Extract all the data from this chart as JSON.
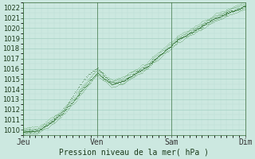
{
  "title": "",
  "xlabel": "Pression niveau de la mer( hPa )",
  "background_color": "#cce8e0",
  "grid_color_major": "#99ccbb",
  "grid_color_minor": "#bbddd4",
  "ylim": [
    1009.5,
    1022.5
  ],
  "xlim": [
    0,
    288
  ],
  "yticks": [
    1010,
    1011,
    1012,
    1013,
    1014,
    1015,
    1016,
    1017,
    1018,
    1019,
    1020,
    1021,
    1022
  ],
  "xtick_positions": [
    0,
    96,
    192,
    288
  ],
  "xtick_labels": [
    "Jeu",
    "Ven",
    "Sam",
    "Dim"
  ],
  "line_color_dark": "#1a5c1a",
  "line_color_mid": "#2d7a2d",
  "line_color_light": "#4a9a4a",
  "num_points": 289,
  "base_x": [
    0,
    20,
    50,
    96,
    115,
    130,
    160,
    200,
    250,
    288
  ],
  "base_y": [
    1009.8,
    1009.9,
    1011.5,
    1015.6,
    1014.5,
    1014.8,
    1016.2,
    1018.8,
    1021.0,
    1022.2
  ],
  "vline_color": "#336633",
  "xlabel_fontsize": 7,
  "ytick_fontsize": 6,
  "xtick_fontsize": 7
}
